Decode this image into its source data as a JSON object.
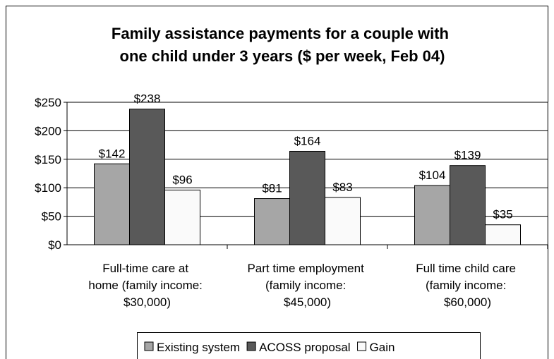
{
  "chart_data": {
    "type": "bar",
    "title": "Family assistance payments for a couple with\none child under 3 years ($ per week, Feb 04)",
    "categories": [
      "Full-time care at\nhome (family income:\n$30,000)",
      "Part time employment\n(family income:\n$45,000)",
      "Full time child care\n(family income:\n$60,000)"
    ],
    "series": [
      {
        "name": "Existing system",
        "color": "#a6a6a6",
        "values": [
          142,
          81,
          104
        ],
        "value_labels": [
          "$142",
          "$81",
          "$104"
        ]
      },
      {
        "name": "ACOSS proposal",
        "color": "#595959",
        "values": [
          238,
          164,
          139
        ],
        "value_labels": [
          "$238",
          "$164",
          "$139"
        ]
      },
      {
        "name": "Gain",
        "color": "#fafafa",
        "values": [
          96,
          83,
          35
        ],
        "value_labels": [
          "$96",
          "$83",
          "$35"
        ]
      }
    ],
    "ylim": [
      0,
      250
    ],
    "yticks": [
      {
        "value": 0,
        "label": "$0"
      },
      {
        "value": 50,
        "label": "$50"
      },
      {
        "value": 100,
        "label": "$100"
      },
      {
        "value": 150,
        "label": "$150"
      },
      {
        "value": 200,
        "label": "$200"
      },
      {
        "value": 250,
        "label": "$250"
      }
    ],
    "grid": true,
    "legend": "bottom"
  }
}
